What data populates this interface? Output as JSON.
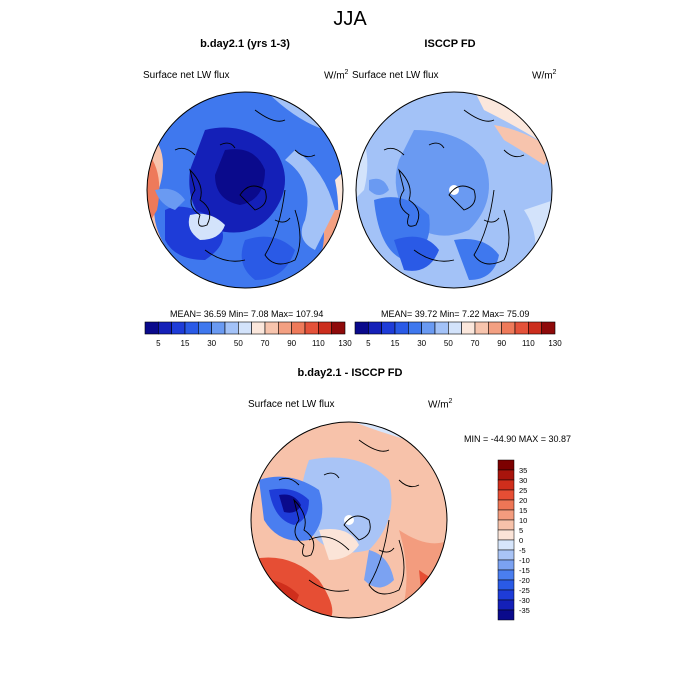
{
  "title": "JJA",
  "panels": [
    {
      "heading": "b.day2.1 (yrs 1-3)",
      "variable": "Surface net LW flux",
      "unit_base": "W/m",
      "unit_exp": "2",
      "stats": "MEAN=  36.59  Min=   7.08  Max= 107.94"
    },
    {
      "heading": "ISCCP FD",
      "variable": "Surface net LW flux",
      "unit_base": "W/m",
      "unit_exp": "2",
      "stats": "MEAN=  39.72  Min=   7.22  Max=  75.09"
    }
  ],
  "diff_panel": {
    "heading": "b.day2.1 - ISCCP FD",
    "variable": "Surface net LW flux",
    "unit_base": "W/m",
    "unit_exp": "2",
    "stats": "MIN = -44.90 MAX =  30.87"
  },
  "colorbar_main": {
    "colors": [
      "#0a0a8c",
      "#1420b8",
      "#1e3cd8",
      "#2a5ae6",
      "#3f78ee",
      "#6a9af2",
      "#a3c2f7",
      "#d3e3fb",
      "#fbe7dc",
      "#f7c4ad",
      "#f3a082",
      "#ee7a5a",
      "#e4523a",
      "#cc2e1e",
      "#8e0a0a"
    ],
    "labels": [
      "5",
      "15",
      "30",
      "50",
      "70",
      "90",
      "110",
      "130"
    ]
  },
  "colorbar_diff": {
    "colors": [
      "#0a0a8c",
      "#1420b8",
      "#1e3cd8",
      "#2a5ae6",
      "#4a7ef0",
      "#7ba2f2",
      "#a9c4f6",
      "#d6e5fb",
      "#fbe4d8",
      "#f7c2aa",
      "#f39c7e",
      "#ee7656",
      "#e64e34",
      "#cf2e1c",
      "#a8140c",
      "#7c0000"
    ],
    "labels": [
      "35",
      "30",
      "25",
      "20",
      "15",
      "10",
      "5",
      "0",
      "-5",
      "-10",
      "-15",
      "-20",
      "-25",
      "-30",
      "-35"
    ]
  }
}
